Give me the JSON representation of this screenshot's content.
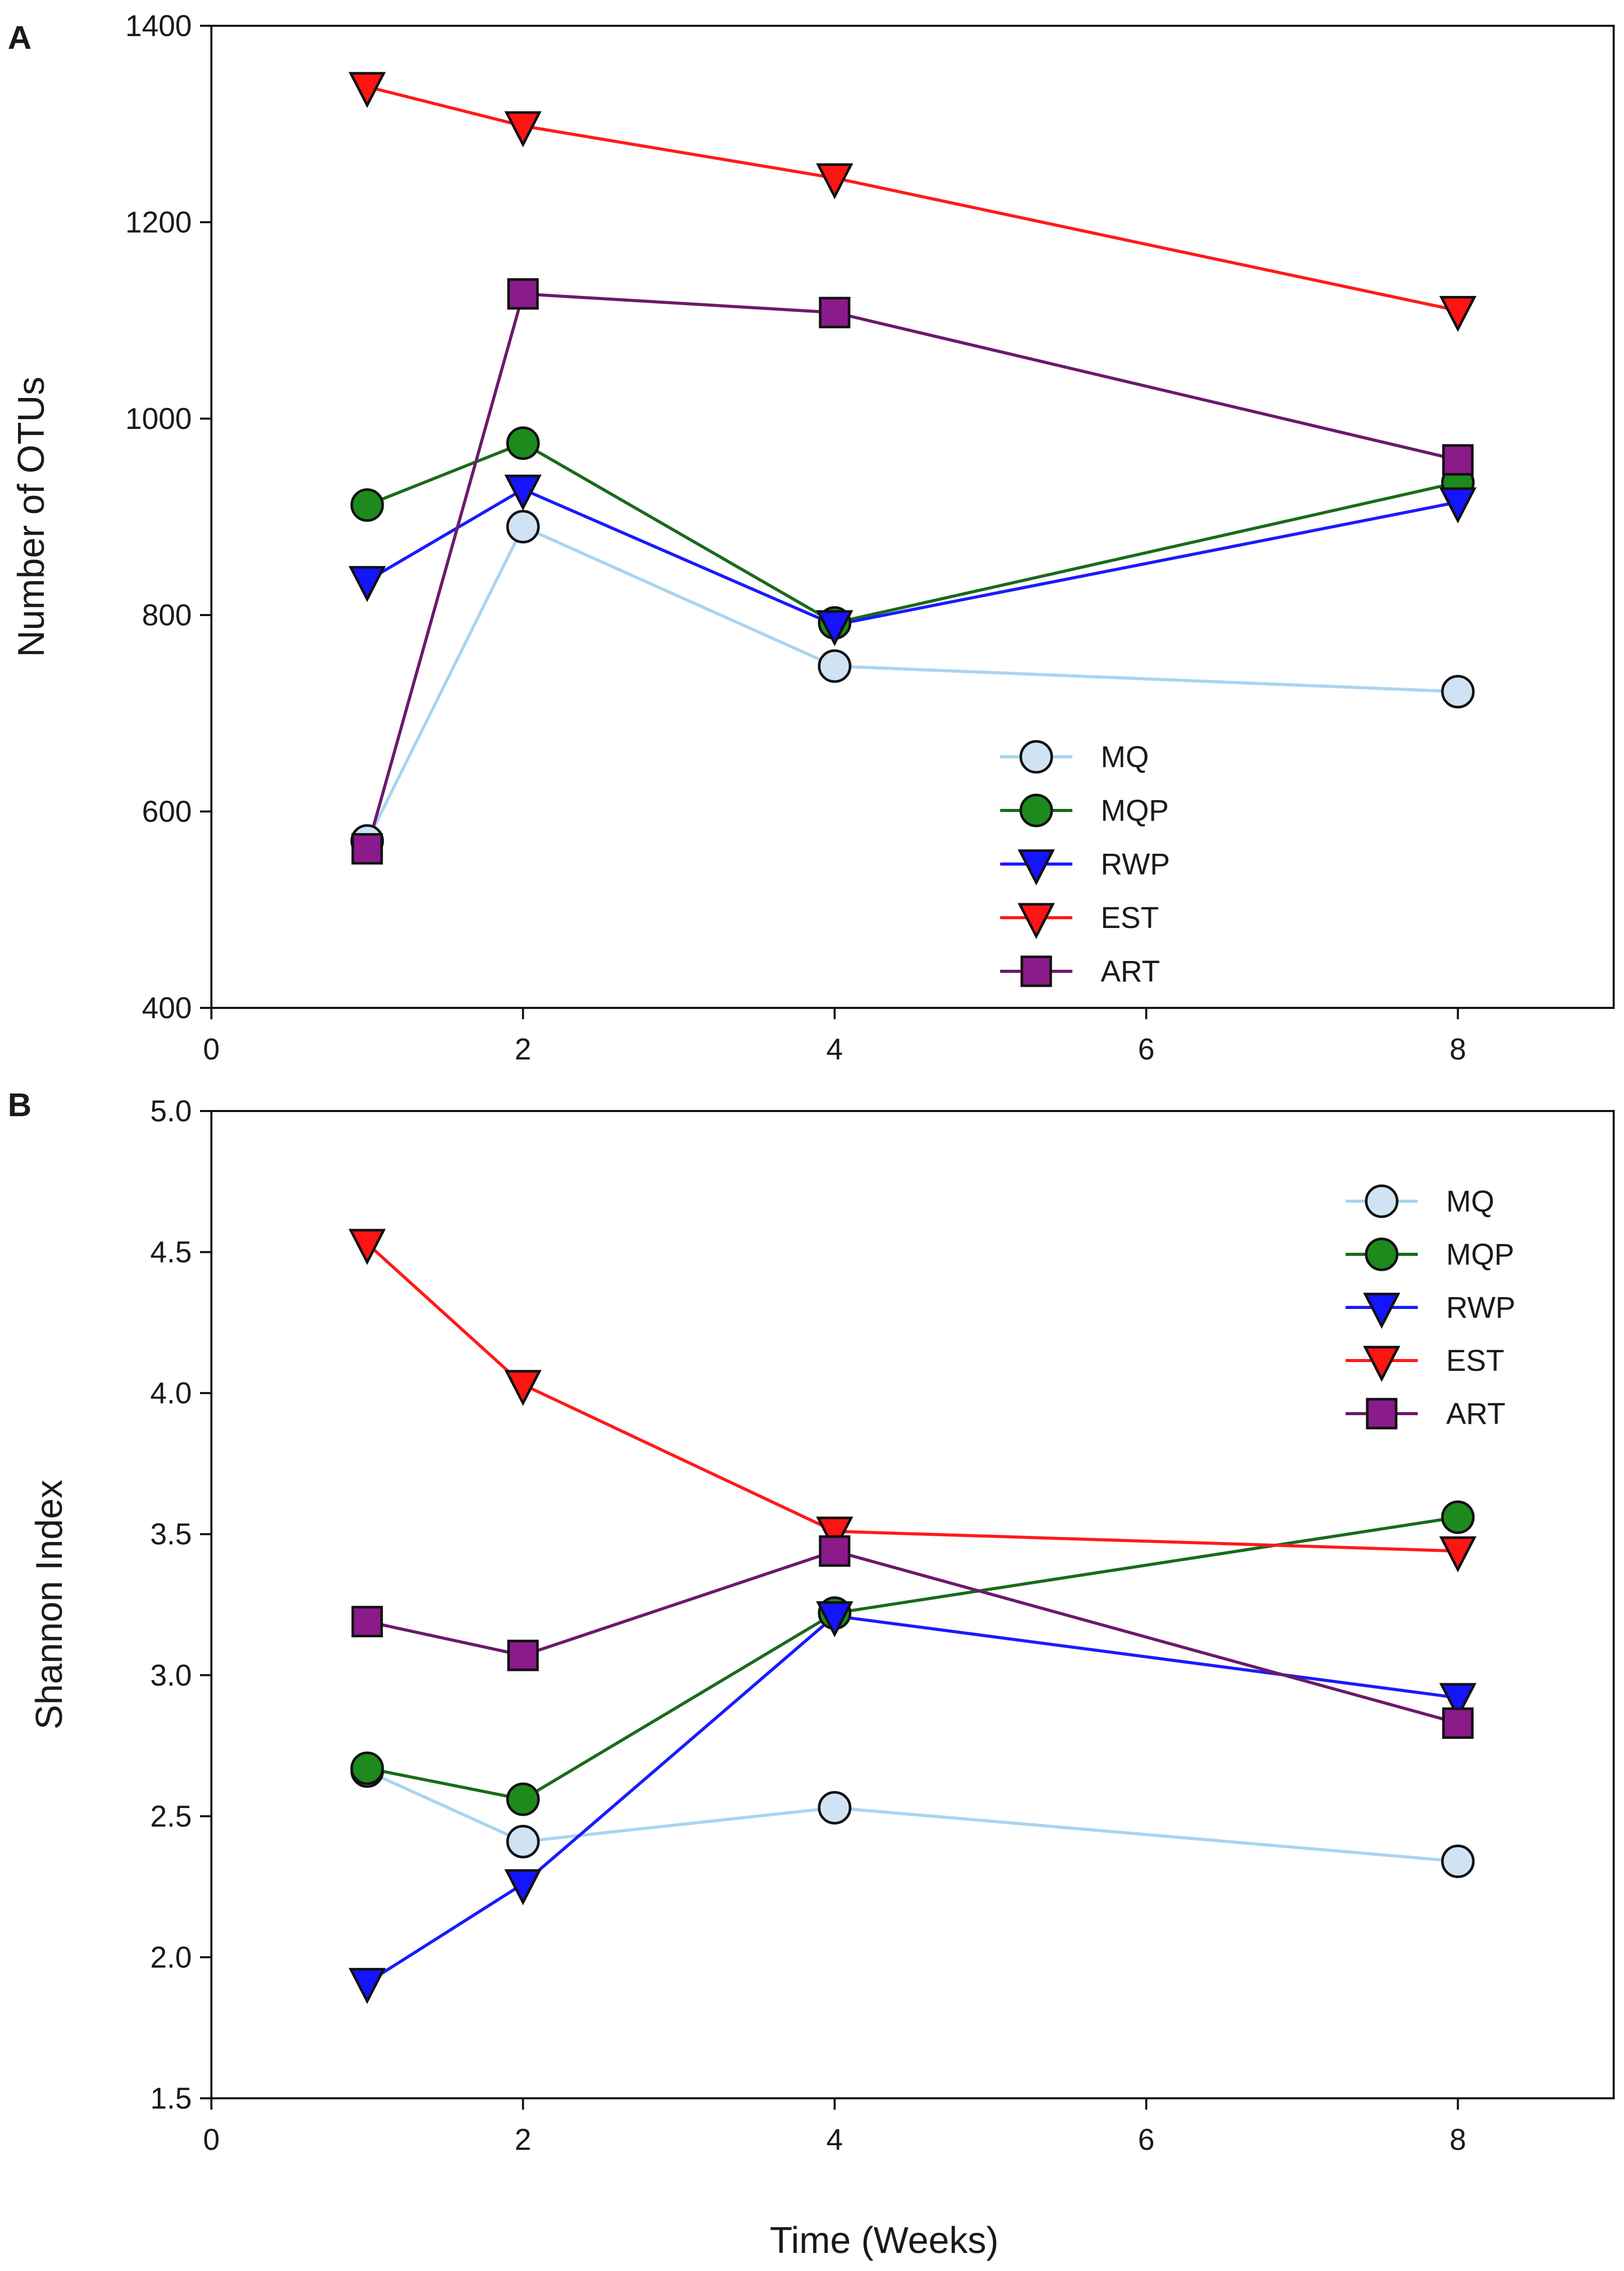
{
  "figure": {
    "xlabel": "Time (Weeks)"
  },
  "chart_data": [
    {
      "type": "line",
      "panel_label": "A",
      "title": "",
      "xlabel": "Time (Weeks)",
      "ylabel": "Number of OTUs",
      "xlim": [
        0,
        9
      ],
      "ylim": [
        400,
        1400
      ],
      "xticks": [
        0,
        2,
        4,
        6,
        8
      ],
      "yticks": [
        400,
        600,
        800,
        1000,
        1200,
        1400
      ],
      "grid": false,
      "legend_position": "bottom-right",
      "x": [
        1,
        2,
        4,
        8
      ],
      "series": [
        {
          "name": "MQ",
          "values": [
            570,
            890,
            748,
            722
          ],
          "color": "#a9d4f0",
          "marker": "circle",
          "fill": "#cfe3f5"
        },
        {
          "name": "MQP",
          "values": [
            912,
            975,
            792,
            935
          ],
          "color": "#1a6b1a",
          "marker": "circle",
          "fill": "#1e8a1e"
        },
        {
          "name": "RWP",
          "values": [
            835,
            928,
            790,
            915
          ],
          "color": "#1a1aff",
          "marker": "triangle-down",
          "fill": "#1414ff"
        },
        {
          "name": "EST",
          "values": [
            1338,
            1298,
            1245,
            1110
          ],
          "color": "#ff1a1a",
          "marker": "triangle-down",
          "fill": "#ff1414"
        },
        {
          "name": "ART",
          "values": [
            562,
            1127,
            1108,
            958
          ],
          "color": "#6b1a6b",
          "marker": "square",
          "fill": "#8b1a8b"
        }
      ]
    },
    {
      "type": "line",
      "panel_label": "B",
      "title": "",
      "xlabel": "Time (Weeks)",
      "ylabel": "Shannon Index",
      "xlim": [
        0,
        9
      ],
      "ylim": [
        1.5,
        5.0
      ],
      "xticks": [
        0,
        2,
        4,
        6,
        8
      ],
      "yticks": [
        "1.5",
        "2.0",
        "2.5",
        "3.0",
        "3.5",
        "4.0",
        "4.5",
        "5.0"
      ],
      "grid": false,
      "legend_position": "top-right",
      "x": [
        1,
        2,
        4,
        8
      ],
      "series": [
        {
          "name": "MQ",
          "values": [
            2.66,
            2.41,
            2.53,
            2.34
          ],
          "color": "#a9d4f0",
          "marker": "circle",
          "fill": "#cfe3f5"
        },
        {
          "name": "MQP",
          "values": [
            2.67,
            2.56,
            3.22,
            3.56
          ],
          "color": "#1a6b1a",
          "marker": "circle",
          "fill": "#1e8a1e"
        },
        {
          "name": "RWP",
          "values": [
            1.91,
            2.26,
            3.21,
            2.92
          ],
          "color": "#1a1aff",
          "marker": "triangle-down",
          "fill": "#1414ff"
        },
        {
          "name": "EST",
          "values": [
            4.53,
            4.03,
            3.51,
            3.44
          ],
          "color": "#ff1a1a",
          "marker": "triangle-down",
          "fill": "#ff1414"
        },
        {
          "name": "ART",
          "values": [
            3.19,
            3.07,
            3.44,
            2.83
          ],
          "color": "#6b1a6b",
          "marker": "square",
          "fill": "#8b1a8b"
        }
      ]
    }
  ]
}
